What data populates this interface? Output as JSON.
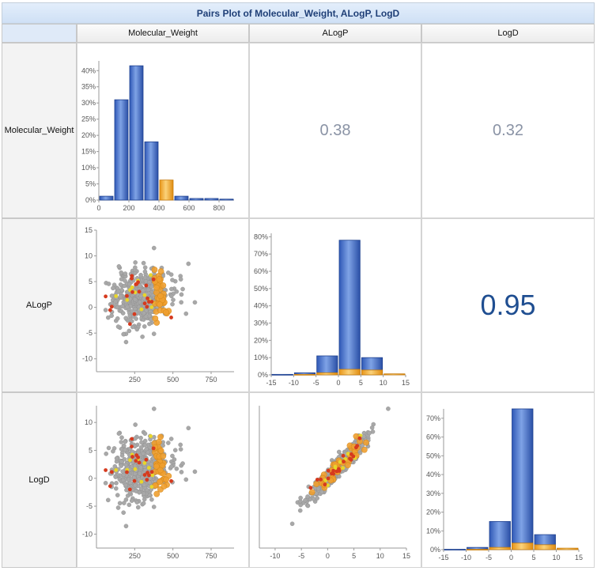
{
  "title": "Pairs Plot of Molecular_Weight, ALogP, LogD",
  "columns": [
    "Molecular_Weight",
    "ALogP",
    "LogD"
  ],
  "rows": [
    "Molecular_Weight",
    "ALogP",
    "LogD"
  ],
  "colors": {
    "bar_blue": "#3a66c4",
    "bar_blue_light": "#dce7f8",
    "bar_orange": "#f2a72a",
    "point_gray": "#a8a8a8",
    "point_orange": "#f0a030",
    "point_red": "#d63a1e",
    "point_yellow": "#e8d62a",
    "corr_weak": "#8a93a5",
    "corr_strong": "#1f4e91"
  },
  "correlations": [
    {
      "label": "0.38",
      "size": "weak"
    },
    {
      "label": "0.32",
      "size": "weak"
    },
    {
      "label": "0.95",
      "size": "strong"
    }
  ],
  "chart_data": [
    {
      "type": "bar",
      "name": "hist-molecular-weight",
      "x_tick_labels": [
        "0",
        "200",
        "400",
        "600",
        "800"
      ],
      "y_tick_labels": [
        "0%",
        "5%",
        "10%",
        "15%",
        "20%",
        "25%",
        "30%",
        "35%",
        "40%"
      ],
      "xlim": [
        0,
        900
      ],
      "ylim": [
        0,
        43
      ],
      "bins": [
        {
          "start": 0,
          "end": 100,
          "total": 1.2,
          "highlight": 0
        },
        {
          "start": 100,
          "end": 200,
          "total": 31,
          "highlight": 0
        },
        {
          "start": 200,
          "end": 300,
          "total": 41.5,
          "highlight": 0
        },
        {
          "start": 300,
          "end": 400,
          "total": 18,
          "highlight": 0
        },
        {
          "start": 400,
          "end": 500,
          "total": 6.2,
          "highlight": 6.2
        },
        {
          "start": 500,
          "end": 600,
          "total": 1.2,
          "highlight": 0
        },
        {
          "start": 600,
          "end": 700,
          "total": 0.5,
          "highlight": 0
        },
        {
          "start": 700,
          "end": 800,
          "total": 0.5,
          "highlight": 0
        },
        {
          "start": 800,
          "end": 900,
          "total": 0.3,
          "highlight": 0
        }
      ]
    },
    {
      "type": "bar",
      "name": "hist-alogp",
      "x_tick_labels": [
        "-15",
        "-10",
        "-5",
        "0",
        "5",
        "10",
        "15"
      ],
      "y_tick_labels": [
        "0%",
        "10%",
        "20%",
        "30%",
        "40%",
        "50%",
        "60%",
        "70%",
        "80%"
      ],
      "xlim": [
        -15,
        15
      ],
      "ylim": [
        0,
        82
      ],
      "bins": [
        {
          "start": -15,
          "end": -10,
          "total": 0.3,
          "highlight": 0
        },
        {
          "start": -10,
          "end": -5,
          "total": 1.2,
          "highlight": 0.3
        },
        {
          "start": -5,
          "end": 0,
          "total": 11,
          "highlight": 1.2
        },
        {
          "start": 0,
          "end": 5,
          "total": 78,
          "highlight": 3.2
        },
        {
          "start": 5,
          "end": 10,
          "total": 10,
          "highlight": 2.8
        },
        {
          "start": 10,
          "end": 15,
          "total": 0.6,
          "highlight": 0.6
        }
      ]
    },
    {
      "type": "bar",
      "name": "hist-logd",
      "x_tick_labels": [
        "-15",
        "-10",
        "-5",
        "0",
        "5",
        "10",
        "15"
      ],
      "y_tick_labels": [
        "0%",
        "10%",
        "20%",
        "30%",
        "40%",
        "50%",
        "60%",
        "70%"
      ],
      "xlim": [
        -15,
        15
      ],
      "ylim": [
        0,
        75
      ],
      "bins": [
        {
          "start": -15,
          "end": -10,
          "total": 0.2,
          "highlight": 0
        },
        {
          "start": -10,
          "end": -5,
          "total": 1.2,
          "highlight": 0.2
        },
        {
          "start": -5,
          "end": 0,
          "total": 15,
          "highlight": 1.2
        },
        {
          "start": 0,
          "end": 5,
          "total": 75,
          "highlight": 3.5
        },
        {
          "start": 5,
          "end": 10,
          "total": 8,
          "highlight": 2.6
        },
        {
          "start": 10,
          "end": 15,
          "total": 0.8,
          "highlight": 0.8
        }
      ]
    },
    {
      "type": "scatter",
      "name": "scatter-mw-vs-alogp",
      "x_tick_labels": [
        "250",
        "500",
        "750"
      ],
      "y_tick_labels": [
        "-10",
        "-5",
        "0",
        "5",
        "10",
        "15"
      ],
      "xlim": [
        0,
        900
      ],
      "ylim": [
        -12.5,
        15
      ]
    },
    {
      "type": "scatter",
      "name": "scatter-mw-vs-logd",
      "x_tick_labels": [
        "250",
        "500",
        "750"
      ],
      "y_tick_labels": [
        "-10",
        "-5",
        "0",
        "5",
        "10"
      ],
      "xlim": [
        0,
        900
      ],
      "ylim": [
        -12.5,
        13
      ]
    },
    {
      "type": "scatter",
      "name": "scatter-alogp-vs-logd",
      "x_tick_labels": [
        "-10",
        "-5",
        "0",
        "5",
        "10",
        "15"
      ],
      "y_tick_labels": [],
      "xlim": [
        -13,
        15
      ],
      "ylim": [
        -13,
        13
      ]
    }
  ]
}
